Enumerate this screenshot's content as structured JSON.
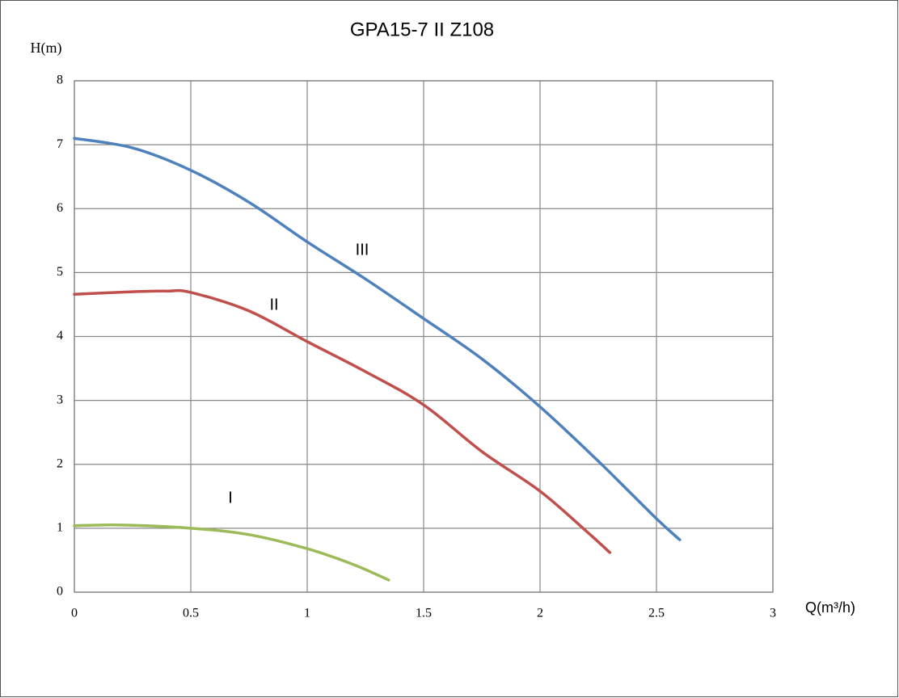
{
  "chart_data": {
    "type": "line",
    "title": "GPA15-7 II Z108",
    "y_label": "H(m)",
    "x_label": "Q(m³/h)",
    "xlim": [
      0,
      3
    ],
    "xticks": [
      0,
      0.5,
      1,
      1.5,
      2,
      2.5,
      3
    ],
    "ylim": [
      0,
      8
    ],
    "yticks": [
      0,
      1,
      2,
      3,
      4,
      5,
      6,
      7,
      8
    ],
    "grid": true,
    "series": [
      {
        "name": "I",
        "color": "#9bbb59",
        "x": [
          0,
          0.2,
          0.5,
          0.75,
          1.0,
          1.2,
          1.35
        ],
        "values": [
          1.04,
          1.05,
          1.0,
          0.9,
          0.68,
          0.43,
          0.19
        ]
      },
      {
        "name": "II",
        "color": "#c0504d",
        "x": [
          0,
          0.25,
          0.4,
          0.5,
          0.75,
          1.0,
          1.25,
          1.5,
          1.75,
          2.0,
          2.2,
          2.3
        ],
        "values": [
          4.66,
          4.7,
          4.71,
          4.69,
          4.4,
          3.92,
          3.45,
          2.93,
          2.2,
          1.58,
          0.95,
          0.62
        ]
      },
      {
        "name": "III",
        "color": "#4f81bd",
        "x": [
          0,
          0.25,
          0.5,
          0.75,
          1.0,
          1.25,
          1.5,
          1.75,
          2.0,
          2.25,
          2.5,
          2.6
        ],
        "values": [
          7.1,
          6.95,
          6.6,
          6.1,
          5.48,
          4.9,
          4.28,
          3.65,
          2.9,
          2.05,
          1.15,
          0.82
        ]
      }
    ]
  }
}
